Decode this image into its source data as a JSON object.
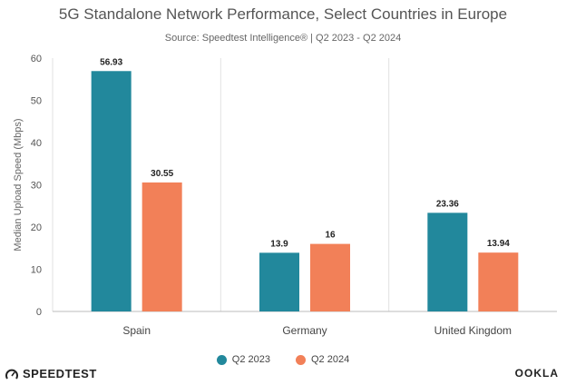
{
  "chart_data": {
    "type": "bar",
    "title": "5G Standalone Network Performance, Select Countries in Europe",
    "subtitle": "Source: Speedtest Intelligence® | Q2 2023 - Q2 2024",
    "ylabel": "Median Upload Speed (Mbps)",
    "xlabel": "",
    "categories": [
      "Spain",
      "Germany",
      "United Kingdom"
    ],
    "series": [
      {
        "name": "Q2 2023",
        "color": "#22889c",
        "values": [
          56.93,
          13.9,
          23.36
        ]
      },
      {
        "name": "Q2 2024",
        "color": "#f28058",
        "values": [
          30.55,
          16,
          13.94
        ]
      }
    ],
    "ylim": [
      0,
      60
    ],
    "yticks": [
      0,
      10,
      20,
      30,
      40,
      50,
      60
    ],
    "grid": "vertical-separators",
    "legend": "bottom-center"
  },
  "branding": {
    "left_logo": "SPEEDTEST",
    "left_icon": "speedtest-gauge-icon",
    "right_logo": "OOKLA"
  }
}
